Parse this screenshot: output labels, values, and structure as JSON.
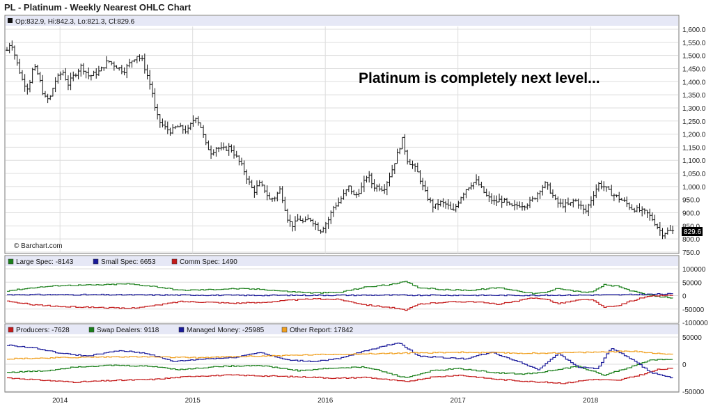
{
  "title": "PL - Platinum - Weekly Nearest OHLC Chart",
  "colors": {
    "price": "#111111",
    "large_spec": "#1a7f1a",
    "small_spec": "#1a1a9a",
    "comm_spec": "#c41a1a",
    "producers": "#c41a1a",
    "swap": "#1a7f1a",
    "managed": "#1a1a9a",
    "other": "#f0a020",
    "header_bg": "#e6e8f6",
    "grid": "#dddddd",
    "box": "#777777"
  },
  "chart_data": [
    {
      "type": "ohlc",
      "legend": "Op:832.9, Hi:842.3, Lo:821.3, Cl:829.6",
      "annotation": "Platinum is completely next level...",
      "watermark": "© Barchart.com",
      "last_value_label": "829.6",
      "ylim": [
        750,
        1600
      ],
      "yticks": [
        "1,600.0",
        "1,550.0",
        "1,500.0",
        "1,450.0",
        "1,400.0",
        "1,350.0",
        "1,300.0",
        "1,250.0",
        "1,200.0",
        "1,150.0",
        "1,100.0",
        "1,050.0",
        "1,000.0",
        "950.0",
        "900.0",
        "850.0",
        "800.0",
        "750.0"
      ],
      "xticks": [
        "2014",
        "2015",
        "2016",
        "2017",
        "2018"
      ],
      "x_range": [
        2013.6,
        2018.65
      ],
      "close_path": [
        [
          2013.6,
          1520
        ],
        [
          2013.63,
          1555
        ],
        [
          2013.67,
          1480
        ],
        [
          2013.72,
          1400
        ],
        [
          2013.76,
          1375
        ],
        [
          2013.8,
          1460
        ],
        [
          2013.84,
          1420
        ],
        [
          2013.88,
          1340
        ],
        [
          2013.92,
          1330
        ],
        [
          2013.96,
          1400
        ],
        [
          2014.02,
          1440
        ],
        [
          2014.06,
          1390
        ],
        [
          2014.1,
          1420
        ],
        [
          2014.16,
          1460
        ],
        [
          2014.22,
          1420
        ],
        [
          2014.3,
          1440
        ],
        [
          2014.36,
          1480
        ],
        [
          2014.42,
          1460
        ],
        [
          2014.48,
          1440
        ],
        [
          2014.54,
          1480
        ],
        [
          2014.58,
          1500
        ],
        [
          2014.62,
          1480
        ],
        [
          2014.66,
          1420
        ],
        [
          2014.7,
          1350
        ],
        [
          2014.72,
          1280
        ],
        [
          2014.76,
          1240
        ],
        [
          2014.8,
          1220
        ],
        [
          2014.84,
          1210
        ],
        [
          2014.88,
          1230
        ],
        [
          2014.92,
          1220
        ],
        [
          2014.96,
          1210
        ],
        [
          2015.02,
          1270
        ],
        [
          2015.06,
          1230
        ],
        [
          2015.1,
          1160
        ],
        [
          2015.14,
          1130
        ],
        [
          2015.18,
          1150
        ],
        [
          2015.22,
          1140
        ],
        [
          2015.28,
          1150
        ],
        [
          2015.32,
          1120
        ],
        [
          2015.38,
          1070
        ],
        [
          2015.42,
          1020
        ],
        [
          2015.46,
          980
        ],
        [
          2015.5,
          1010
        ],
        [
          2015.54,
          990
        ],
        [
          2015.58,
          950
        ],
        [
          2015.62,
          960
        ],
        [
          2015.66,
          990
        ],
        [
          2015.68,
          950
        ],
        [
          2015.72,
          870
        ],
        [
          2015.76,
          850
        ],
        [
          2015.8,
          880
        ],
        [
          2015.84,
          860
        ],
        [
          2015.88,
          880
        ],
        [
          2015.92,
          860
        ],
        [
          2015.96,
          830
        ],
        [
          2016.02,
          870
        ],
        [
          2016.06,
          920
        ],
        [
          2016.1,
          940
        ],
        [
          2016.14,
          970
        ],
        [
          2016.18,
          1000
        ],
        [
          2016.22,
          960
        ],
        [
          2016.28,
          1000
        ],
        [
          2016.32,
          1050
        ],
        [
          2016.36,
          1000
        ],
        [
          2016.4,
          1000
        ],
        [
          2016.44,
          990
        ],
        [
          2016.5,
          1060
        ],
        [
          2016.54,
          1120
        ],
        [
          2016.58,
          1180
        ],
        [
          2016.62,
          1100
        ],
        [
          2016.66,
          1080
        ],
        [
          2016.7,
          1050
        ],
        [
          2016.74,
          990
        ],
        [
          2016.78,
          950
        ],
        [
          2016.82,
          920
        ],
        [
          2016.86,
          940
        ],
        [
          2016.92,
          930
        ],
        [
          2016.96,
          900
        ],
        [
          2017.02,
          960
        ],
        [
          2017.06,
          990
        ],
        [
          2017.1,
          1010
        ],
        [
          2017.14,
          1020
        ],
        [
          2017.18,
          990
        ],
        [
          2017.22,
          960
        ],
        [
          2017.28,
          940
        ],
        [
          2017.32,
          950
        ],
        [
          2017.36,
          940
        ],
        [
          2017.4,
          920
        ],
        [
          2017.46,
          930
        ],
        [
          2017.5,
          930
        ],
        [
          2017.54,
          940
        ],
        [
          2017.58,
          960
        ],
        [
          2017.62,
          990
        ],
        [
          2017.66,
          1010
        ],
        [
          2017.7,
          980
        ],
        [
          2017.74,
          940
        ],
        [
          2017.78,
          930
        ],
        [
          2017.84,
          930
        ],
        [
          2017.88,
          950
        ],
        [
          2017.92,
          930
        ],
        [
          2017.96,
          900
        ],
        [
          2018.02,
          970
        ],
        [
          2018.06,
          1010
        ],
        [
          2018.1,
          1000
        ],
        [
          2018.14,
          980
        ],
        [
          2018.2,
          960
        ],
        [
          2018.26,
          940
        ],
        [
          2018.3,
          920
        ],
        [
          2018.36,
          910
        ],
        [
          2018.42,
          900
        ],
        [
          2018.46,
          880
        ],
        [
          2018.5,
          850
        ],
        [
          2018.54,
          820
        ],
        [
          2018.58,
          830
        ],
        [
          2018.62,
          830
        ]
      ]
    },
    {
      "type": "line",
      "ylim": [
        -100000,
        100000
      ],
      "yticks": [
        "100000",
        "50000",
        "0",
        "-50000",
        "-100000"
      ],
      "series": [
        {
          "name": "Large Spec: -8143",
          "color_key": "large_spec",
          "values": [
            [
              2013.6,
              18000
            ],
            [
              2013.8,
              30000
            ],
            [
              2014.0,
              38000
            ],
            [
              2014.3,
              40000
            ],
            [
              2014.5,
              44000
            ],
            [
              2014.7,
              35000
            ],
            [
              2014.9,
              20000
            ],
            [
              2015.1,
              22000
            ],
            [
              2015.3,
              26000
            ],
            [
              2015.5,
              24000
            ],
            [
              2015.7,
              16000
            ],
            [
              2015.9,
              10000
            ],
            [
              2016.1,
              12000
            ],
            [
              2016.3,
              32000
            ],
            [
              2016.5,
              42000
            ],
            [
              2016.6,
              52000
            ],
            [
              2016.7,
              30000
            ],
            [
              2016.9,
              22000
            ],
            [
              2017.1,
              20000
            ],
            [
              2017.3,
              30000
            ],
            [
              2017.45,
              18000
            ],
            [
              2017.55,
              8000
            ],
            [
              2017.65,
              10000
            ],
            [
              2017.75,
              28000
            ],
            [
              2017.9,
              15000
            ],
            [
              2018.0,
              12000
            ],
            [
              2018.1,
              40000
            ],
            [
              2018.2,
              35000
            ],
            [
              2018.3,
              18000
            ],
            [
              2018.4,
              5000
            ],
            [
              2018.5,
              -3000
            ],
            [
              2018.62,
              -8143
            ]
          ]
        },
        {
          "name": "Small Spec: 6653",
          "color_key": "small_spec",
          "values": [
            [
              2013.6,
              4000
            ],
            [
              2014.5,
              3000
            ],
            [
              2015.5,
              1000
            ],
            [
              2016.5,
              2000
            ],
            [
              2017.5,
              1000
            ],
            [
              2018.2,
              3000
            ],
            [
              2018.62,
              6653
            ]
          ]
        },
        {
          "name": "Comm Spec: 1490",
          "color_key": "comm_spec",
          "values": [
            [
              2013.6,
              -22000
            ],
            [
              2013.8,
              -34000
            ],
            [
              2014.0,
              -41000
            ],
            [
              2014.3,
              -44000
            ],
            [
              2014.5,
              -48000
            ],
            [
              2014.7,
              -38000
            ],
            [
              2014.9,
              -22000
            ],
            [
              2015.1,
              -24000
            ],
            [
              2015.3,
              -28000
            ],
            [
              2015.5,
              -26000
            ],
            [
              2015.7,
              -18000
            ],
            [
              2015.9,
              -12000
            ],
            [
              2016.1,
              -14000
            ],
            [
              2016.3,
              -34000
            ],
            [
              2016.5,
              -45000
            ],
            [
              2016.6,
              -55000
            ],
            [
              2016.7,
              -32000
            ],
            [
              2016.9,
              -24000
            ],
            [
              2017.1,
              -22000
            ],
            [
              2017.3,
              -32000
            ],
            [
              2017.45,
              -20000
            ],
            [
              2017.55,
              -9000
            ],
            [
              2017.65,
              -11000
            ],
            [
              2017.75,
              -30000
            ],
            [
              2017.9,
              -17000
            ],
            [
              2018.0,
              -14000
            ],
            [
              2018.1,
              -44000
            ],
            [
              2018.2,
              -38000
            ],
            [
              2018.3,
              -20000
            ],
            [
              2018.4,
              -6000
            ],
            [
              2018.5,
              0
            ],
            [
              2018.62,
              1490
            ]
          ]
        }
      ]
    },
    {
      "type": "line",
      "ylim": [
        -50000,
        50000
      ],
      "yticks": [
        "50000",
        "0",
        "-50000"
      ],
      "series": [
        {
          "name": "Producers: -7628",
          "color_key": "producers",
          "values": [
            [
              2013.6,
              -25000
            ],
            [
              2013.9,
              -30000
            ],
            [
              2014.1,
              -33000
            ],
            [
              2014.4,
              -30000
            ],
            [
              2014.7,
              -28000
            ],
            [
              2015.0,
              -22000
            ],
            [
              2015.3,
              -20000
            ],
            [
              2015.6,
              -22000
            ],
            [
              2015.9,
              -24000
            ],
            [
              2016.1,
              -26000
            ],
            [
              2016.3,
              -24000
            ],
            [
              2016.6,
              -32000
            ],
            [
              2016.8,
              -24000
            ],
            [
              2017.0,
              -20000
            ],
            [
              2017.3,
              -28000
            ],
            [
              2017.55,
              -32000
            ],
            [
              2017.8,
              -35000
            ],
            [
              2018.0,
              -28000
            ],
            [
              2018.2,
              -30000
            ],
            [
              2018.4,
              -18000
            ],
            [
              2018.5,
              -10000
            ],
            [
              2018.62,
              -7628
            ]
          ]
        },
        {
          "name": "Swap Dealers: 9118",
          "color_key": "swap",
          "values": [
            [
              2013.6,
              -15000
            ],
            [
              2013.9,
              -12000
            ],
            [
              2014.1,
              -5000
            ],
            [
              2014.4,
              -2000
            ],
            [
              2014.7,
              -4000
            ],
            [
              2014.9,
              -10000
            ],
            [
              2015.2,
              -4000
            ],
            [
              2015.5,
              -2000
            ],
            [
              2015.8,
              -12000
            ],
            [
              2016.0,
              -8000
            ],
            [
              2016.3,
              -5000
            ],
            [
              2016.6,
              -25000
            ],
            [
              2016.8,
              -12000
            ],
            [
              2017.0,
              -8000
            ],
            [
              2017.3,
              -16000
            ],
            [
              2017.5,
              -18000
            ],
            [
              2017.7,
              -12000
            ],
            [
              2017.9,
              -4000
            ],
            [
              2018.1,
              -20000
            ],
            [
              2018.3,
              -5000
            ],
            [
              2018.45,
              8000
            ],
            [
              2018.62,
              9118
            ]
          ]
        },
        {
          "name": "Managed Money: -25985",
          "color_key": "managed",
          "values": [
            [
              2013.6,
              35000
            ],
            [
              2013.8,
              30000
            ],
            [
              2014.0,
              20000
            ],
            [
              2014.2,
              15000
            ],
            [
              2014.45,
              25000
            ],
            [
              2014.65,
              20000
            ],
            [
              2014.85,
              5000
            ],
            [
              2015.1,
              10000
            ],
            [
              2015.3,
              12000
            ],
            [
              2015.5,
              22000
            ],
            [
              2015.7,
              8000
            ],
            [
              2015.9,
              5000
            ],
            [
              2016.1,
              10000
            ],
            [
              2016.3,
              25000
            ],
            [
              2016.55,
              40000
            ],
            [
              2016.7,
              15000
            ],
            [
              2016.9,
              12000
            ],
            [
              2017.05,
              10000
            ],
            [
              2017.25,
              22000
            ],
            [
              2017.45,
              5000
            ],
            [
              2017.6,
              -10000
            ],
            [
              2017.75,
              20000
            ],
            [
              2017.9,
              -5000
            ],
            [
              2018.05,
              -8000
            ],
            [
              2018.15,
              30000
            ],
            [
              2018.3,
              10000
            ],
            [
              2018.45,
              -15000
            ],
            [
              2018.62,
              -25985
            ]
          ]
        },
        {
          "name": "Other Report: 17842",
          "color_key": "other",
          "values": [
            [
              2013.6,
              10000
            ],
            [
              2014.0,
              12000
            ],
            [
              2014.5,
              14000
            ],
            [
              2015.0,
              12000
            ],
            [
              2015.5,
              15000
            ],
            [
              2016.0,
              18000
            ],
            [
              2016.5,
              20000
            ],
            [
              2017.0,
              22000
            ],
            [
              2017.5,
              20000
            ],
            [
              2018.0,
              22000
            ],
            [
              2018.3,
              24000
            ],
            [
              2018.62,
              17842
            ]
          ]
        }
      ]
    }
  ]
}
